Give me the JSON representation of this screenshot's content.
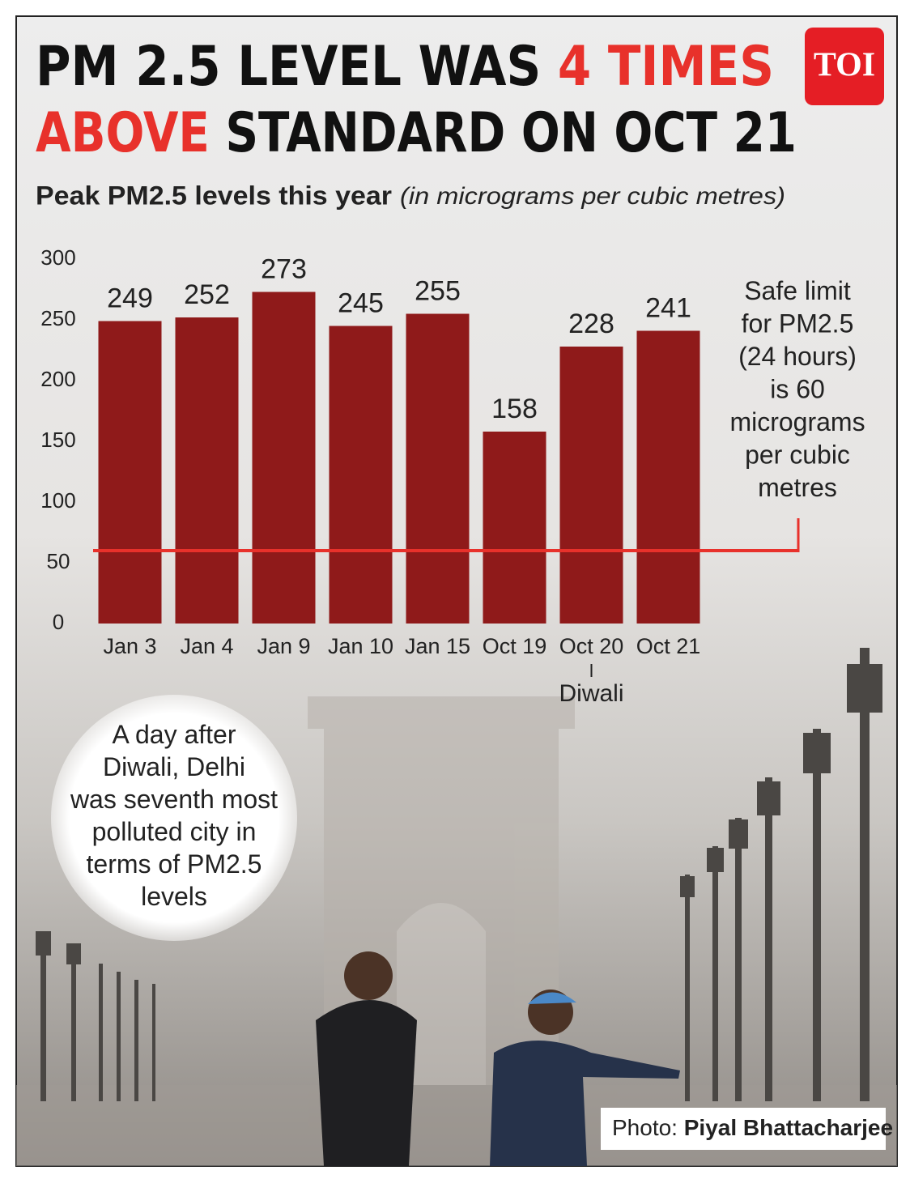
{
  "chart_data": {
    "type": "bar",
    "title_segments": [
      {
        "text": "PM 2.5 LEVEL WAS",
        "color": "#111111"
      },
      {
        "text": "4 TIMES",
        "color": "#e8312b"
      },
      {
        "text": "ABOVE",
        "color": "#e8312b"
      },
      {
        "text": "STANDARD ON OCT 21",
        "color": "#111111"
      }
    ],
    "subtitle": "Peak PM2.5 levels this year",
    "unit_note": "(in micrograms per cubic metres)",
    "logo": "TOI",
    "categories": [
      "Jan 3",
      "Jan 4",
      "Jan 9",
      "Jan 10",
      "Jan 15",
      "Oct 19",
      "Oct 20",
      "Oct 21"
    ],
    "values": [
      249,
      252,
      273,
      245,
      255,
      158,
      228,
      241
    ],
    "color": "#8f1a1a",
    "ylim": [
      0,
      300
    ],
    "yticks": [
      0,
      50,
      100,
      150,
      200,
      250,
      300
    ],
    "safe_limit": {
      "value": 60,
      "color": "#e8312b",
      "label": "Safe limit for PM2.5 (24 hours) is 60 micrograms per cubic metres"
    },
    "category_note": {
      "category": "Oct 20",
      "text": "Diwali"
    },
    "callout": "A day after Diwali, Delhi was seventh most polluted city in terms of PM2.5 levels",
    "credit_prefix": "Photo:",
    "credit_name": "Piyal Bhattacharjee"
  }
}
